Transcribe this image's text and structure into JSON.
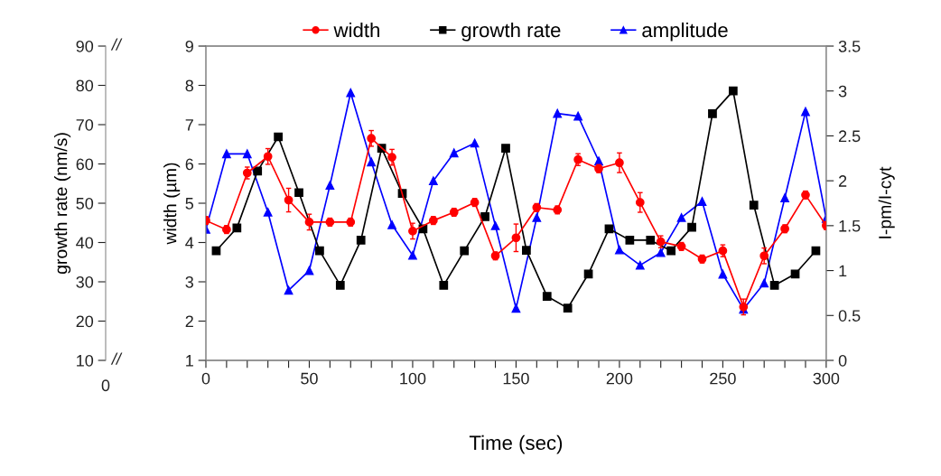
{
  "chart_data": {
    "type": "line",
    "xlabel": "Time (sec)",
    "ylabel": "width (µm)",
    "y2label": "I-pm/I-cyt",
    "y3label": "growth rate (nm/s)",
    "xlim": [
      0,
      300
    ],
    "xticks": [
      0,
      {
        "value": 10,
        "label": null
      },
      {
        "value": 20,
        "label": null
      },
      {
        "value": 30,
        "label": null
      },
      {
        "value": 40,
        "label": null
      },
      50,
      {
        "value": 60,
        "label": null
      },
      {
        "value": 70,
        "label": null
      },
      {
        "value": 80,
        "label": null
      },
      {
        "value": 90,
        "label": null
      },
      100,
      {
        "value": 110,
        "label": null
      },
      {
        "value": 120,
        "label": null
      },
      {
        "value": 130,
        "label": null
      },
      {
        "value": 140,
        "label": null
      },
      150,
      {
        "value": 160,
        "label": null
      },
      {
        "value": 170,
        "label": null
      },
      {
        "value": 180,
        "label": null
      },
      {
        "value": 190,
        "label": null
      },
      200,
      {
        "value": 210,
        "label": null
      },
      {
        "value": 220,
        "label": null
      },
      {
        "value": 230,
        "label": null
      },
      {
        "value": 240,
        "label": null
      },
      250,
      {
        "value": 260,
        "label": null
      },
      {
        "value": 270,
        "label": null
      },
      {
        "value": 280,
        "label": null
      },
      {
        "value": 290,
        "label": null
      },
      300
    ],
    "ylim": [
      1,
      9
    ],
    "yticks": [
      1,
      2,
      3,
      4,
      5,
      6,
      7,
      8,
      9
    ],
    "y2lim": [
      0,
      3.5
    ],
    "y2ticks": [
      0,
      0.5,
      1,
      1.5,
      2,
      2.5,
      3,
      3.5
    ],
    "y3lim": [
      10,
      90
    ],
    "y3ticks": [
      10,
      20,
      30,
      40,
      50,
      60,
      70,
      80,
      90
    ],
    "grid": false,
    "legend": "top",
    "line_style": "solid",
    "annotations": [
      "0",
      "//",
      "//"
    ],
    "series": [
      {
        "name": "width",
        "color": "#ff0000",
        "marker": "circle",
        "x": [
          0,
          10,
          20,
          30,
          40,
          50,
          60,
          70,
          80,
          90,
          100,
          110,
          120,
          130,
          140,
          150,
          160,
          170,
          180,
          190,
          200,
          210,
          220,
          230,
          240,
          250,
          260,
          270,
          280,
          290,
          300
        ],
        "values": [
          4.56,
          4.33,
          5.77,
          6.19,
          5.08,
          4.52,
          4.52,
          4.52,
          6.65,
          6.17,
          4.29,
          4.56,
          4.77,
          5.02,
          3.66,
          4.12,
          4.89,
          4.83,
          6.11,
          5.88,
          6.03,
          5.02,
          4.02,
          3.9,
          3.58,
          3.79,
          2.36,
          3.66,
          4.35,
          5.21,
          4.43
        ],
        "errors": [
          0.1,
          0.1,
          0.15,
          0.2,
          0.3,
          0.2,
          0.1,
          0.1,
          0.2,
          0.2,
          0.2,
          0.1,
          0.1,
          0.1,
          0.1,
          0.35,
          0.1,
          0.1,
          0.15,
          0.1,
          0.25,
          0.25,
          0.15,
          0.1,
          0.1,
          0.15,
          0.2,
          0.2,
          0.1,
          0.1,
          0.1
        ]
      },
      {
        "name": "growth rate",
        "color": "#000000",
        "marker": "square",
        "axis": "y3",
        "x": [
          5,
          15,
          25,
          35,
          45,
          55,
          65,
          75,
          85,
          95,
          105,
          115,
          125,
          135,
          145,
          155,
          165,
          175,
          185,
          195,
          205,
          215,
          225,
          235,
          245,
          255,
          265,
          275,
          285,
          295
        ],
        "values": [
          37.9,
          43.7,
          58.2,
          66.9,
          52.7,
          37.9,
          29.1,
          40.6,
          64.0,
          52.5,
          43.5,
          29.1,
          37.9,
          46.6,
          64.0,
          38.0,
          26.3,
          23.3,
          32.0,
          43.5,
          40.6,
          40.6,
          37.9,
          43.9,
          72.8,
          78.6,
          49.5,
          29.1,
          32.0,
          37.9
        ]
      },
      {
        "name": "amplitude",
        "color": "#0000ff",
        "marker": "triangle",
        "axis": "y2",
        "x": [
          0,
          10,
          20,
          30,
          40,
          50,
          60,
          70,
          80,
          90,
          100,
          110,
          120,
          130,
          140,
          150,
          160,
          170,
          180,
          190,
          200,
          210,
          220,
          230,
          240,
          250,
          260,
          270,
          280,
          290,
          300
        ],
        "values": [
          1.46,
          2.3,
          2.3,
          1.65,
          0.78,
          1.0,
          1.95,
          2.98,
          2.21,
          1.51,
          1.17,
          2.0,
          2.31,
          2.42,
          1.5,
          0.58,
          1.59,
          2.75,
          2.72,
          2.22,
          1.23,
          1.06,
          1.2,
          1.59,
          1.77,
          0.96,
          0.57,
          0.86,
          1.81,
          2.77,
          1.58
        ]
      }
    ]
  }
}
